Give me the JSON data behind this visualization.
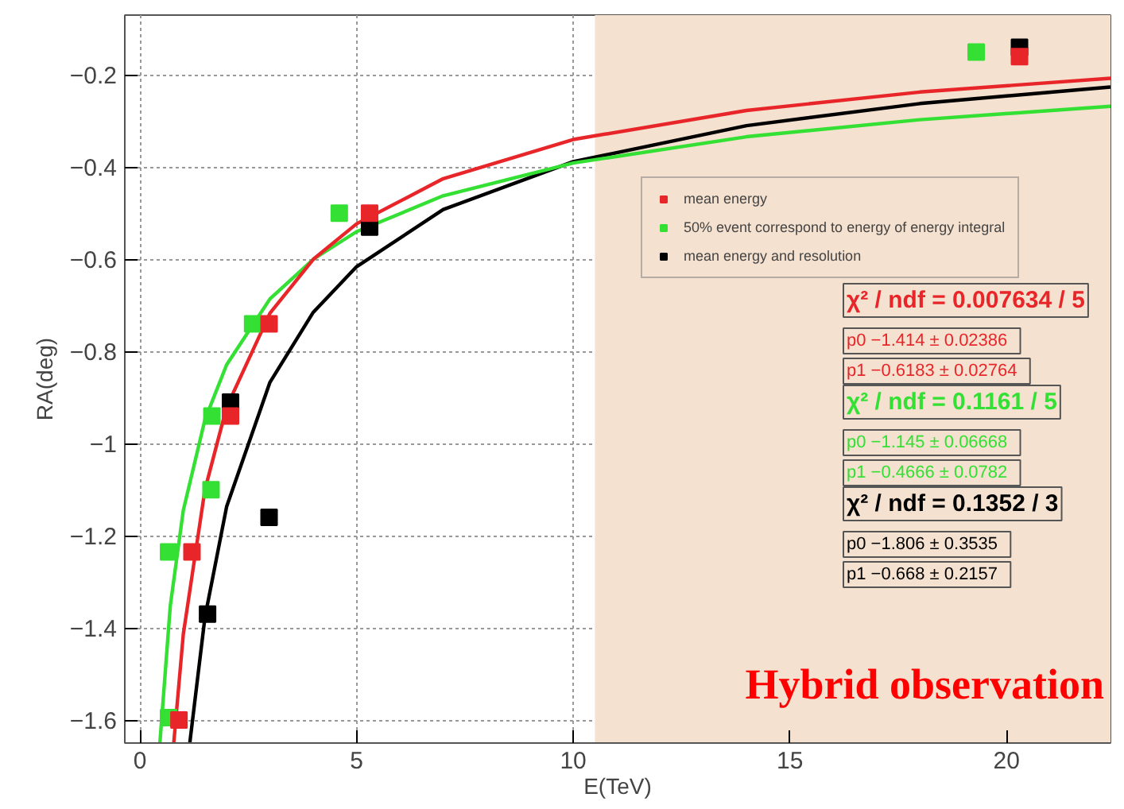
{
  "chart_data": {
    "type": "scatter",
    "xlabel": "E(TeV)",
    "ylabel": "RA(deg)",
    "xlim": [
      -0.35,
      22.4
    ],
    "ylim": [
      -1.65,
      -0.07
    ],
    "xticks": [
      0,
      5,
      10,
      15,
      20
    ],
    "yticks": [
      -1.6,
      -1.4,
      -1.2,
      -1,
      -0.8,
      -0.6,
      -0.4,
      -0.2
    ],
    "grid": true,
    "legend": "right",
    "series": [
      {
        "name": "mean energy",
        "marker": "square",
        "color": "#e8262a",
        "x": [
          0.9,
          1.2,
          2.09,
          2.98,
          5.3,
          20.3
        ],
        "values": [
          -1.6,
          -1.235,
          -0.94,
          -0.74,
          -0.5,
          -0.16
        ]
      },
      {
        "name": "50% event correspond to energy of energy integral",
        "marker": "square",
        "color": "#33e033",
        "x": [
          0.66,
          0.66,
          1.64,
          1.66,
          2.6,
          4.6,
          19.3
        ],
        "values": [
          -1.595,
          -1.235,
          -1.1,
          -0.94,
          -0.74,
          -0.5,
          -0.15
        ]
      },
      {
        "name": "mean energy and resolution",
        "marker": "square",
        "color": "#000000",
        "x": [
          1.56,
          2.09,
          2.98,
          5.3,
          20.3
        ],
        "values": [
          -1.37,
          -0.91,
          -1.16,
          -0.53,
          -0.14
        ]
      },
      {
        "type": "line",
        "color": "#e8262a",
        "x": [
          0.78,
          1,
          1.5,
          2,
          3,
          4,
          5,
          7,
          10,
          14,
          18,
          22.4
        ],
        "values": [
          -1.65,
          -1.414,
          -1.1,
          -0.921,
          -0.717,
          -0.6,
          -0.523,
          -0.425,
          -0.34,
          -0.277,
          -0.237,
          -0.207
        ]
      },
      {
        "type": "line",
        "color": "#33e033",
        "x": [
          0.46,
          0.7,
          1,
          1.5,
          2,
          3,
          4,
          5,
          7,
          10,
          14,
          18,
          22.4
        ],
        "values": [
          -1.65,
          -1.352,
          -1.145,
          -0.948,
          -0.829,
          -0.686,
          -0.6,
          -0.54,
          -0.462,
          -0.391,
          -0.334,
          -0.297,
          -0.268
        ]
      },
      {
        "type": "line",
        "color": "#000000",
        "x": [
          1.15,
          1.5,
          2,
          3,
          4,
          5,
          7,
          10,
          14,
          18,
          22.4
        ],
        "values": [
          -1.65,
          -1.377,
          -1.137,
          -0.867,
          -0.715,
          -0.616,
          -0.492,
          -0.388,
          -0.31,
          -0.262,
          -0.226
        ]
      }
    ],
    "bands": [
      {
        "axis": "x",
        "from": 10.5,
        "to": 22.4,
        "label": "Hybrid observation",
        "color": "#f5e1cf"
      }
    ],
    "annotations": [
      "χ² / ndf = 0.007634 / 5",
      "p0   −1.414 ± 0.02386",
      "p1   −0.6183 ± 0.02764",
      "χ² / ndf = 0.1161 / 5",
      "p0   −1.145 ± 0.06668",
      "p1   −0.4666 ± 0.0782",
      "χ² / ndf = 0.1352 / 3",
      "p0   −1.806 ± 0.3535",
      "p1   −0.668 ± 0.2157"
    ]
  }
}
